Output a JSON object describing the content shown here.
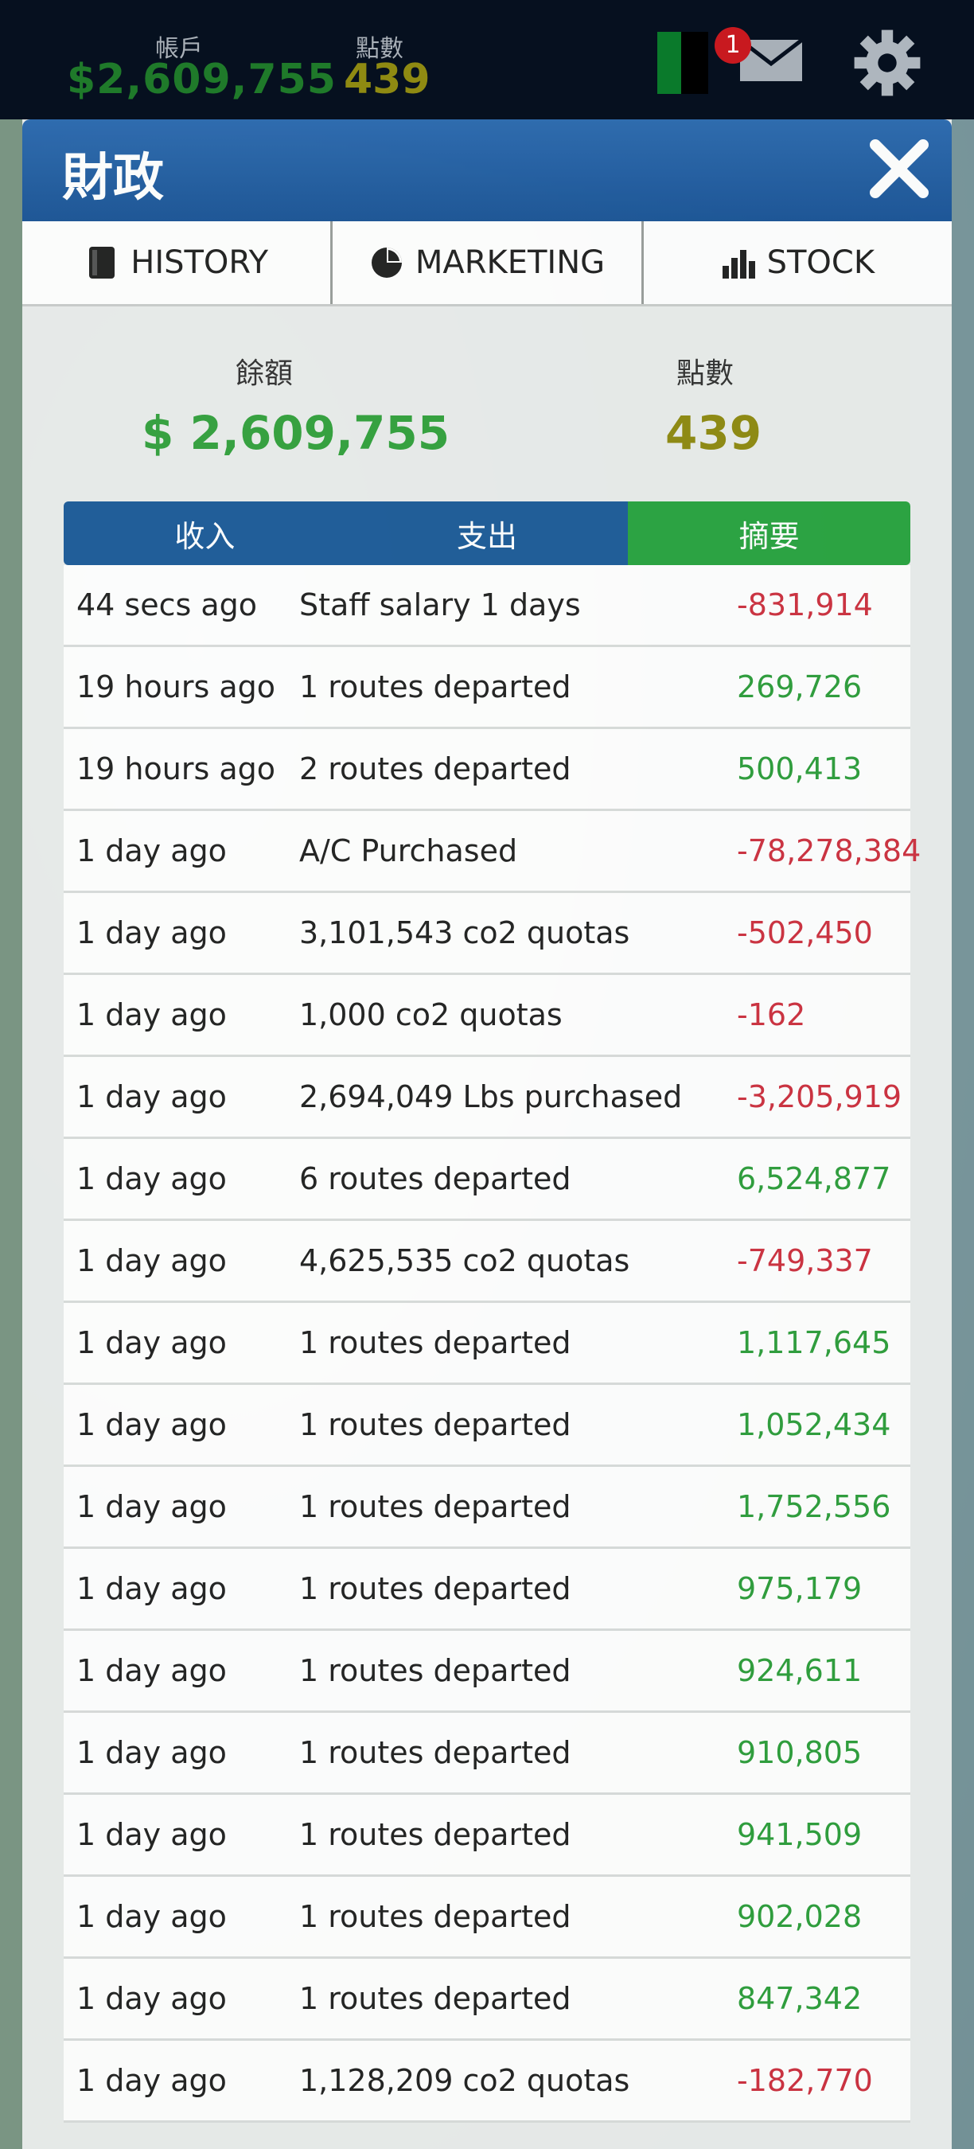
{
  "topbar": {
    "account_label": "帳戶",
    "account_value": "$2,609,755",
    "points_label": "點數",
    "points_value": "439",
    "mail_badge": "1",
    "icons": [
      "flag-icon",
      "mail-icon",
      "gear-icon"
    ]
  },
  "modal": {
    "title": "財政",
    "tabs": [
      {
        "label": "HISTORY",
        "icon": "book-icon"
      },
      {
        "label": "MARKETING",
        "icon": "pie-chart-icon"
      },
      {
        "label": "STOCK",
        "icon": "bar-chart-icon"
      }
    ],
    "balance_label": "餘額",
    "balance_value": "$ 2,609,755",
    "points_label": "點數",
    "points_value": "439",
    "segments": [
      {
        "label": "收入",
        "active": false
      },
      {
        "label": "支出",
        "active": false
      },
      {
        "label": "摘要",
        "active": true
      }
    ],
    "transactions": [
      {
        "time": "44 secs ago",
        "desc": "Staff salary 1 days",
        "amount": "-831,914"
      },
      {
        "time": "19 hours ago",
        "desc": "1 routes departed",
        "amount": "269,726"
      },
      {
        "time": "19 hours ago",
        "desc": "2 routes departed",
        "amount": "500,413"
      },
      {
        "time": "1 day ago",
        "desc": "A/C Purchased",
        "amount": "-78,278,384"
      },
      {
        "time": "1 day ago",
        "desc": "3,101,543 co2 quotas",
        "amount": "-502,450"
      },
      {
        "time": "1 day ago",
        "desc": "1,000 co2 quotas",
        "amount": "-162"
      },
      {
        "time": "1 day ago",
        "desc": "2,694,049 Lbs purchased",
        "amount": "-3,205,919"
      },
      {
        "time": "1 day ago",
        "desc": "6 routes departed",
        "amount": "6,524,877"
      },
      {
        "time": "1 day ago",
        "desc": "4,625,535 co2 quotas",
        "amount": "-749,337"
      },
      {
        "time": "1 day ago",
        "desc": "1 routes departed",
        "amount": "1,117,645"
      },
      {
        "time": "1 day ago",
        "desc": "1 routes departed",
        "amount": "1,052,434"
      },
      {
        "time": "1 day ago",
        "desc": "1 routes departed",
        "amount": "1,752,556"
      },
      {
        "time": "1 day ago",
        "desc": "1 routes departed",
        "amount": "975,179"
      },
      {
        "time": "1 day ago",
        "desc": "1 routes departed",
        "amount": "924,611"
      },
      {
        "time": "1 day ago",
        "desc": "1 routes departed",
        "amount": "910,805"
      },
      {
        "time": "1 day ago",
        "desc": "1 routes departed",
        "amount": "941,509"
      },
      {
        "time": "1 day ago",
        "desc": "1 routes departed",
        "amount": "902,028"
      },
      {
        "time": "1 day ago",
        "desc": "1 routes departed",
        "amount": "847,342"
      },
      {
        "time": "1 day ago",
        "desc": "1,128,209 co2 quotas",
        "amount": "-182,770"
      }
    ]
  },
  "colors": {
    "header_blue": "#1c5597",
    "segment_blue": "#1e5c99",
    "segment_active_green": "#2aa441",
    "positive_green": "#2e9e3c",
    "negative_red": "#cd3140",
    "points_olive": "#8f8a12"
  }
}
